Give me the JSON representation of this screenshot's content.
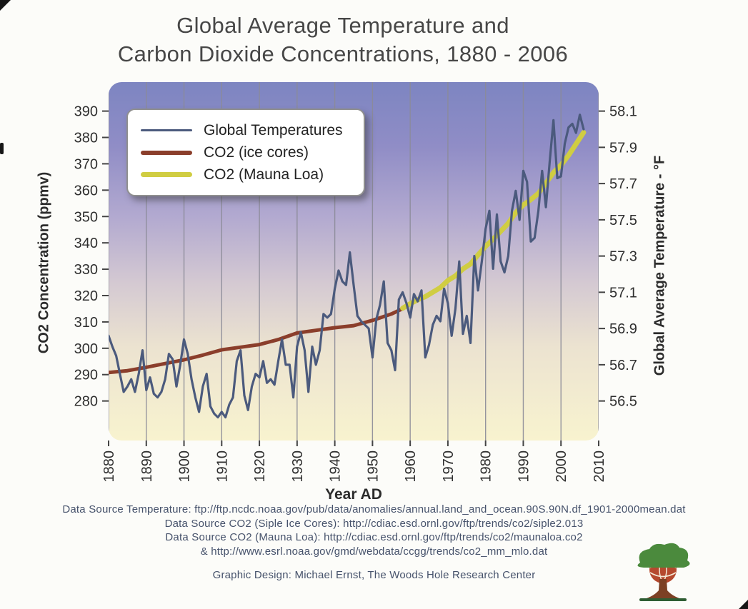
{
  "title": {
    "line1": "Global Average Temperature and",
    "line2": "Carbon Dioxide Concentrations, 1880 - 2006"
  },
  "chart_data": {
    "type": "line",
    "title": "Global Average Temperature and Carbon Dioxide Concentrations, 1880 - 2006",
    "xlabel": "Year AD",
    "x_range": [
      1880,
      2010
    ],
    "x_ticks": [
      1880,
      1890,
      1900,
      1910,
      1920,
      1930,
      1940,
      1950,
      1960,
      1970,
      1980,
      1990,
      2000,
      2010
    ],
    "grid": "vertical",
    "grid_color": "#8b8b98",
    "left_axis": {
      "label": "CO2 Concentration (ppmv)",
      "ticks": [
        390,
        380,
        370,
        360,
        350,
        340,
        330,
        320,
        310,
        300,
        290,
        280
      ],
      "range": [
        265,
        401
      ]
    },
    "right_axis": {
      "label": "Global Average Temperature - °F",
      "ticks": [
        58.1,
        57.9,
        57.7,
        57.5,
        57.3,
        57.1,
        56.9,
        56.7,
        56.5
      ],
      "align": {
        "co2": 280,
        "temp": 56.5,
        "co2_per_degF": 68.75
      }
    },
    "background_gradient": [
      {
        "offset": "0%",
        "color": "#7d85c1"
      },
      {
        "offset": "18%",
        "color": "#908dc6"
      },
      {
        "offset": "38%",
        "color": "#b3aad0"
      },
      {
        "offset": "56%",
        "color": "#d4c9d2"
      },
      {
        "offset": "74%",
        "color": "#ece3d0"
      },
      {
        "offset": "100%",
        "color": "#f8f3cf"
      }
    ],
    "legend": {
      "position": "top-left",
      "items": [
        {
          "label": "Global Temperatures",
          "color": "#4b5a7d",
          "thickness": 3
        },
        {
          "label": "CO2 (ice cores)",
          "color": "#8b3e2b",
          "thickness": 6
        },
        {
          "label": "CO2 (Mauna Loa)",
          "color": "#d0cd42",
          "thickness": 7
        }
      ]
    },
    "series": [
      {
        "id": "co2-ice-line",
        "name": "CO2 (ice cores)",
        "axis": "left",
        "color": "#8b3e2b",
        "width": 5,
        "x": [
          1880,
          1885,
          1890,
          1895,
          1900,
          1905,
          1910,
          1915,
          1920,
          1925,
          1930,
          1935,
          1940,
          1945,
          1950,
          1955,
          1958
        ],
        "values": [
          290.8,
          291.5,
          292.8,
          294.2,
          295.6,
          297.4,
          299.4,
          300.4,
          301.4,
          303.3,
          305.8,
          306.8,
          307.8,
          308.6,
          310.6,
          313.0,
          315.0
        ]
      },
      {
        "id": "co2-mauna-line",
        "name": "CO2 (Mauna Loa)",
        "axis": "left",
        "color": "#d0cd42",
        "width": 7,
        "x": [
          1958,
          1960,
          1962,
          1964,
          1966,
          1968,
          1970,
          1972,
          1974,
          1976,
          1978,
          1980,
          1982,
          1984,
          1986,
          1988,
          1990,
          1992,
          1994,
          1996,
          1998,
          2000,
          2002,
          2004,
          2006
        ],
        "values": [
          315.2,
          316.9,
          318.4,
          319.6,
          321.3,
          323.0,
          325.7,
          327.5,
          330.1,
          332.0,
          335.4,
          338.7,
          341.4,
          344.4,
          347.4,
          351.5,
          354.4,
          356.4,
          358.8,
          362.6,
          366.7,
          369.5,
          373.2,
          377.5,
          381.9
        ]
      },
      {
        "id": "temperature-line",
        "name": "Global Temperatures",
        "axis": "right",
        "color": "#4b5a7d",
        "width": 3.2,
        "x_start": 1880,
        "values": [
          56.86,
          56.8,
          56.75,
          56.65,
          56.55,
          56.58,
          56.62,
          56.55,
          56.65,
          56.78,
          56.56,
          56.63,
          56.54,
          56.52,
          56.55,
          56.62,
          56.76,
          56.73,
          56.58,
          56.7,
          56.84,
          56.76,
          56.62,
          56.52,
          56.44,
          56.58,
          56.65,
          56.47,
          56.43,
          56.41,
          56.44,
          56.41,
          56.48,
          56.52,
          56.72,
          56.78,
          56.53,
          56.45,
          56.58,
          56.65,
          56.63,
          56.72,
          56.6,
          56.62,
          56.59,
          56.72,
          56.84,
          56.7,
          56.7,
          56.52,
          56.8,
          56.88,
          56.78,
          56.55,
          56.8,
          56.7,
          56.78,
          56.98,
          56.96,
          56.98,
          57.12,
          57.22,
          57.16,
          57.14,
          57.32,
          57.14,
          56.97,
          56.94,
          56.92,
          56.9,
          56.74,
          56.95,
          57.03,
          57.16,
          56.82,
          56.78,
          56.67,
          57.06,
          57.1,
          57.04,
          56.96,
          57.09,
          57.05,
          57.11,
          56.74,
          56.81,
          56.92,
          56.97,
          56.94,
          57.12,
          57.04,
          56.86,
          57.01,
          57.27,
          56.87,
          56.97,
          56.82,
          57.3,
          57.11,
          57.27,
          57.45,
          57.55,
          57.23,
          57.53,
          57.27,
          57.21,
          57.3,
          57.55,
          57.66,
          57.5,
          57.77,
          57.71,
          57.38,
          57.4,
          57.55,
          57.77,
          57.57,
          57.82,
          58.05,
          57.73,
          57.74,
          57.92,
          58.01,
          58.03,
          57.98,
          58.08,
          58.0
        ]
      }
    ]
  },
  "footer": {
    "lines": [
      "Data Source Temperature: ftp://ftp.ncdc.noaa.gov/pub/data/anomalies/annual.land_and_ocean.90S.90N.df_1901-2000mean.dat",
      "Data Source CO2 (Siple Ice Cores): http://cdiac.esd.ornl.gov/ftp/trends/co2/siple2.013",
      "Data Source CO2 (Mauna Loa): http://cdiac.esd.ornl.gov/ftp/trends/co2/maunaloa.co2",
      "& http://www.esrl.noaa.gov/gmd/webdata/ccgg/trends/co2_mm_mlo.dat"
    ],
    "credit": "Graphic Design: Michael Ernst, The Woods Hole Research Center"
  },
  "logo": {
    "name": "woods-hole-research-center-tree-logo"
  }
}
